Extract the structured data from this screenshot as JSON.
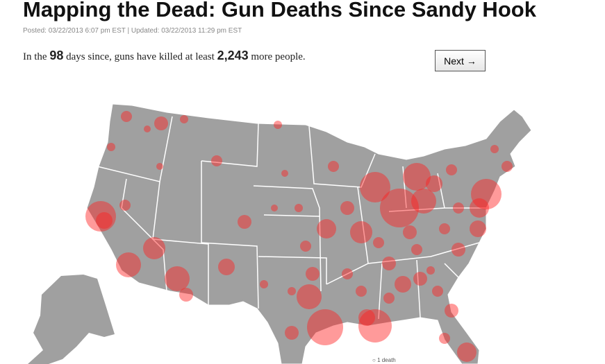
{
  "header": {
    "title": "Mapping the Dead: Gun Deaths Since Sandy Hook",
    "posted": "Posted: 03/22/2013 6:07 pm EST | Updated: 03/22/2013 11:29 pm EST"
  },
  "intro": {
    "prefix": "In the",
    "days": "98",
    "middle": "days since, guns have killed at least",
    "deaths": "2,243",
    "suffix": "more people."
  },
  "button": "Next →",
  "legend": {
    "label": "1 death"
  }
}
